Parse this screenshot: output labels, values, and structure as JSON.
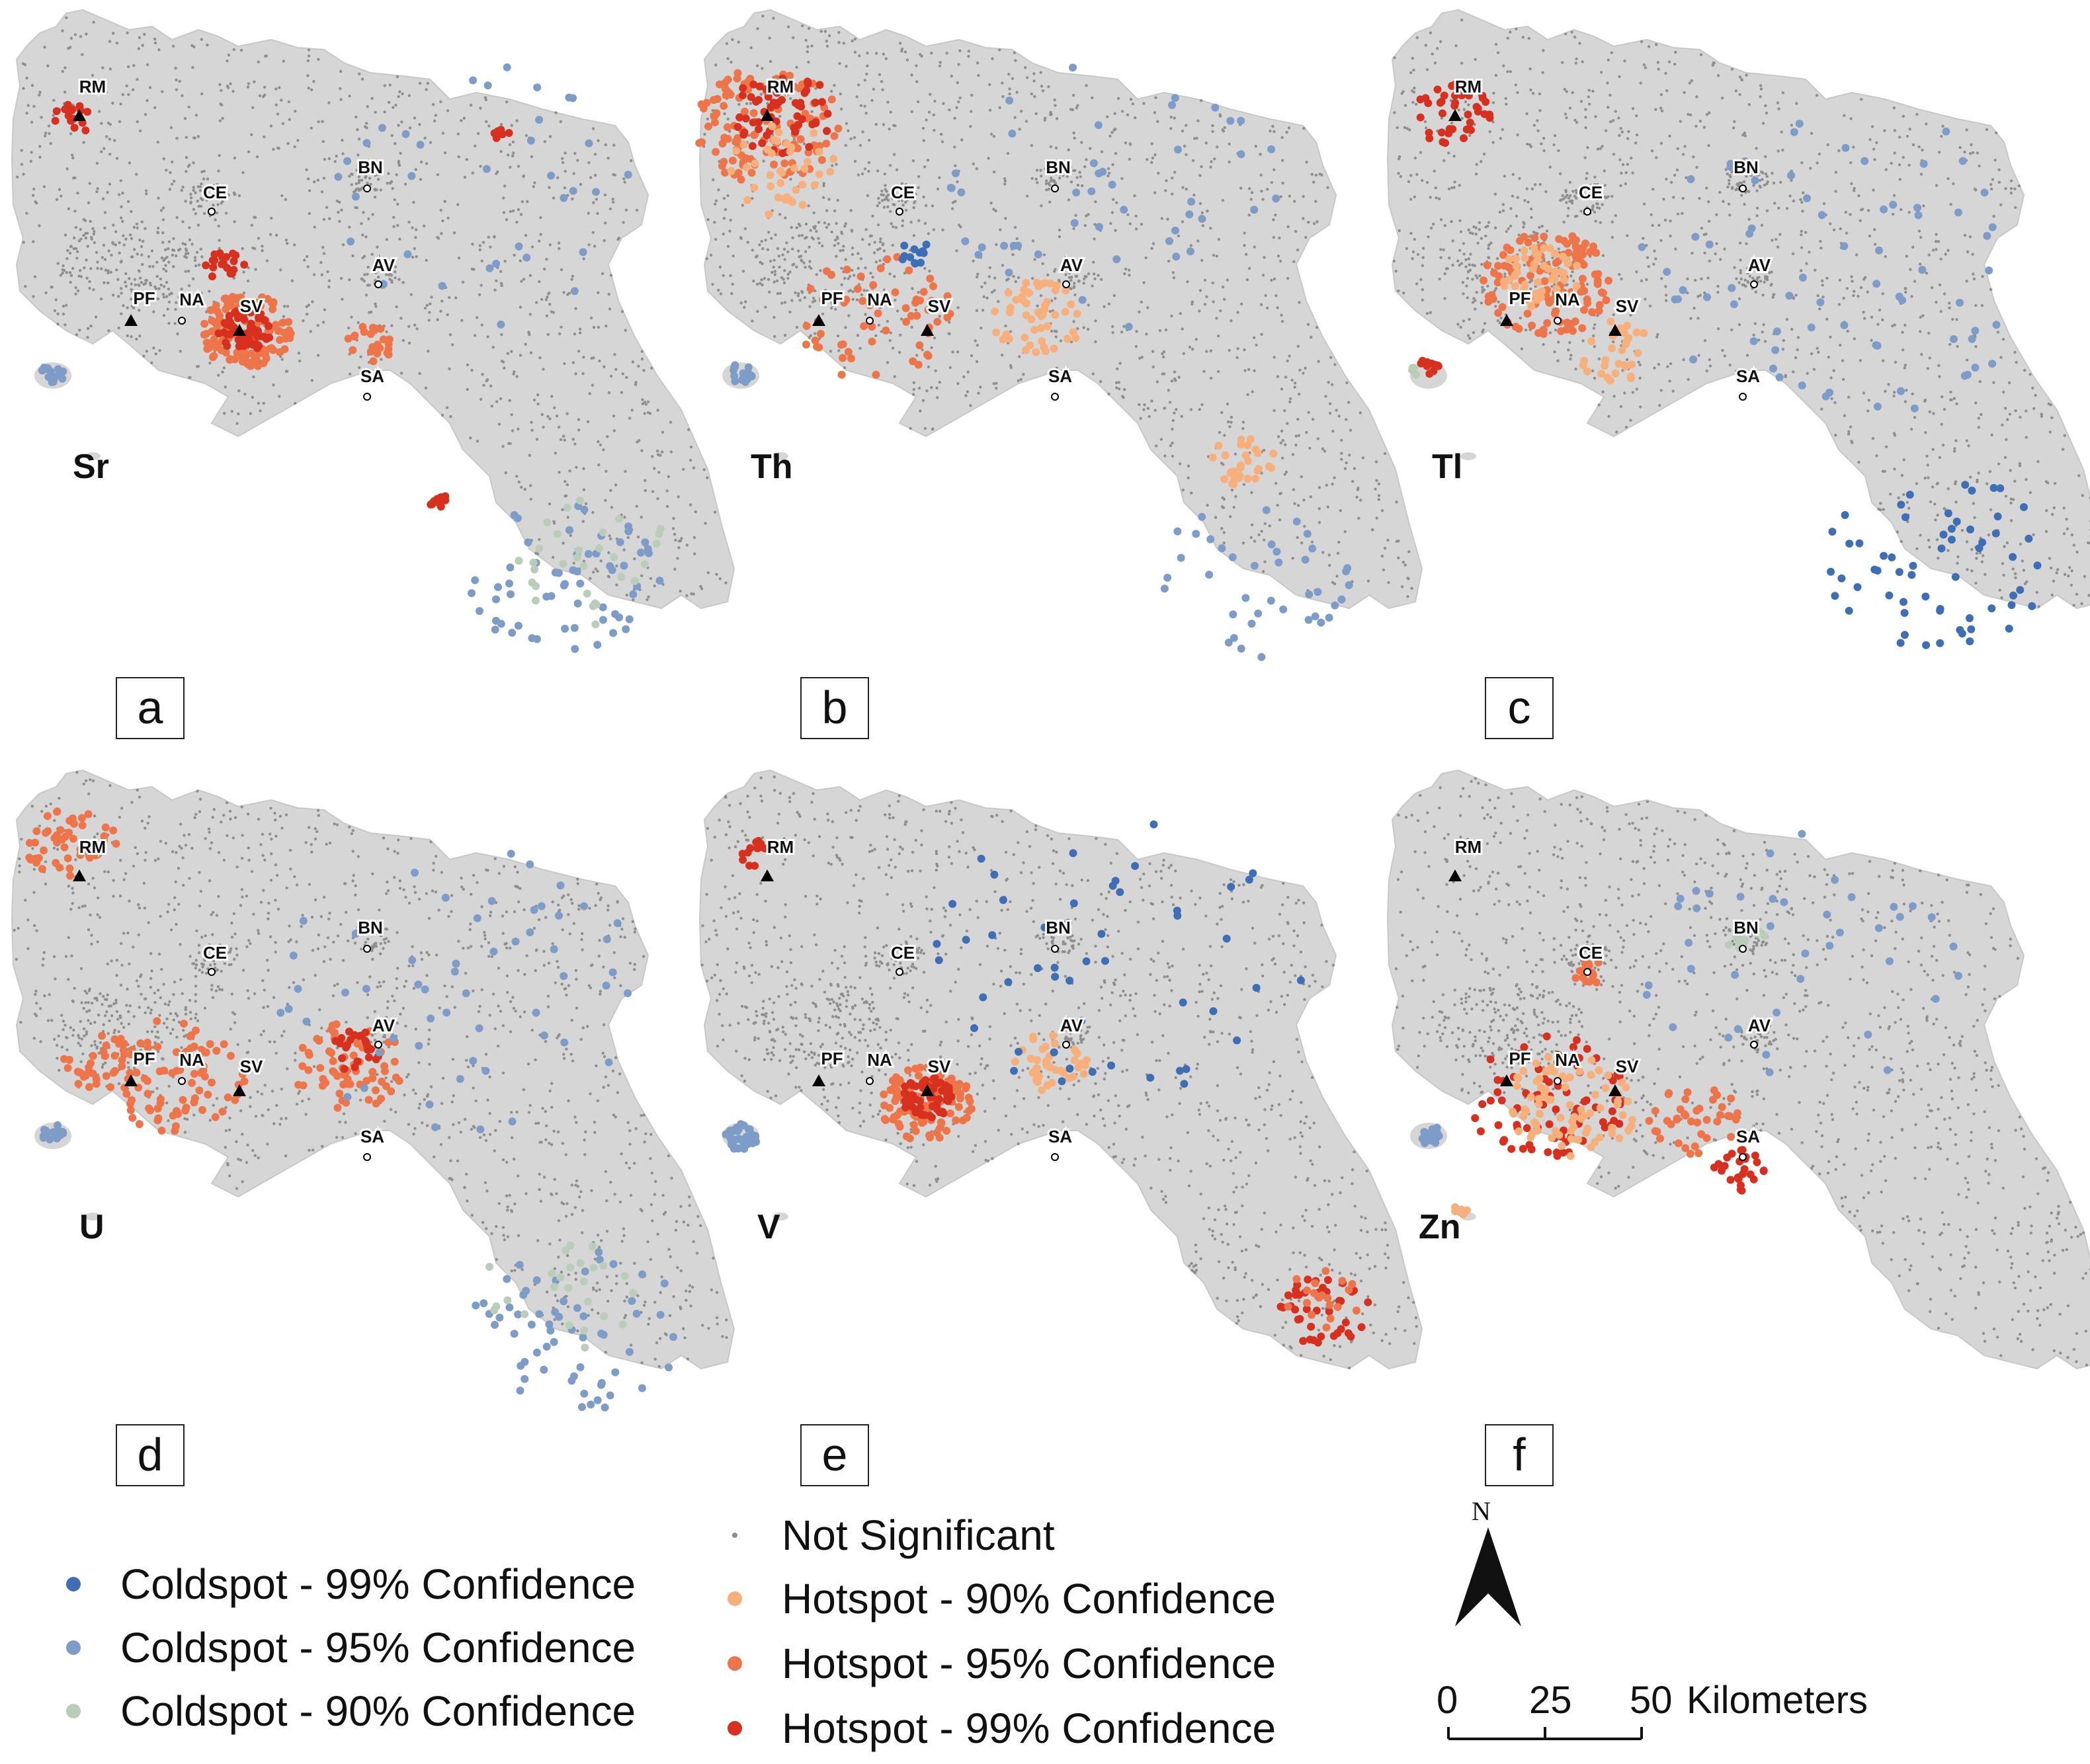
{
  "panels": [
    {
      "id": "a",
      "element": "Sr"
    },
    {
      "id": "b",
      "element": "Th"
    },
    {
      "id": "c",
      "element": "Tl"
    },
    {
      "id": "d",
      "element": "U"
    },
    {
      "id": "e",
      "element": "V"
    },
    {
      "id": "f",
      "element": "Zn"
    }
  ],
  "places": [
    "RM",
    "CE",
    "BN",
    "AV",
    "PF",
    "NA",
    "SV",
    "SA"
  ],
  "legend": {
    "coldspot_99": "Coldspot - 99% Confidence",
    "coldspot_95": "Coldspot - 95% Confidence",
    "coldspot_90": "Coldspot - 90% Confidence",
    "not_significant": "Not Significant",
    "hotspot_90": "Hotspot - 90% Confidence",
    "hotspot_95": "Hotspot - 95% Confidence",
    "hotspot_99": "Hotspot - 99% Confidence"
  },
  "colors": {
    "coldspot_99": "#3e6eb5",
    "coldspot_95": "#7d9cc8",
    "coldspot_90": "#b9cdb8",
    "not_significant": "#8f8f8f",
    "hotspot_90": "#f7b07b",
    "hotspot_95": "#ee7549",
    "hotspot_99": "#d7301f",
    "land": "#d6d6d6"
  },
  "north_arrow": {
    "label": "N"
  },
  "scale_bar": {
    "ticks": [
      "0",
      "25",
      "50"
    ],
    "unit": "Kilometers"
  }
}
